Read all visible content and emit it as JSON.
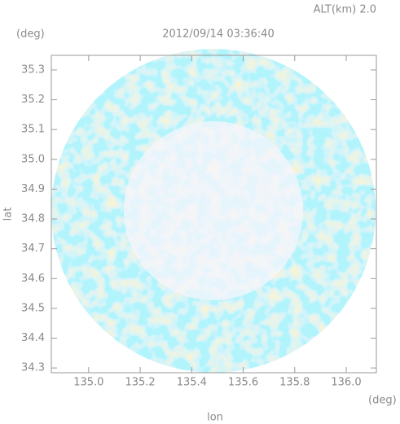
{
  "chart_data": {
    "type": "heatmap",
    "title": "2012/09/14 03:36:40",
    "subtitle": "ALT(km) 2.0",
    "x_label": "lon",
    "y_label": "lat",
    "x_unit": "(deg)",
    "y_unit": "(deg)",
    "xlim": [
      134.855,
      136.117
    ],
    "ylim": [
      34.284,
      35.349
    ],
    "xticks": [
      {
        "value": 135,
        "label": "135.0"
      },
      135.2,
      135.4,
      135.6,
      135.8,
      {
        "value": 136,
        "label": "136.0"
      }
    ],
    "yticks": [
      34.3,
      34.4,
      34.5,
      34.6,
      34.7,
      34.8,
      34.9,
      {
        "value": 35,
        "label": "35.0"
      },
      35.1,
      35.2,
      35.3
    ]
  }
}
